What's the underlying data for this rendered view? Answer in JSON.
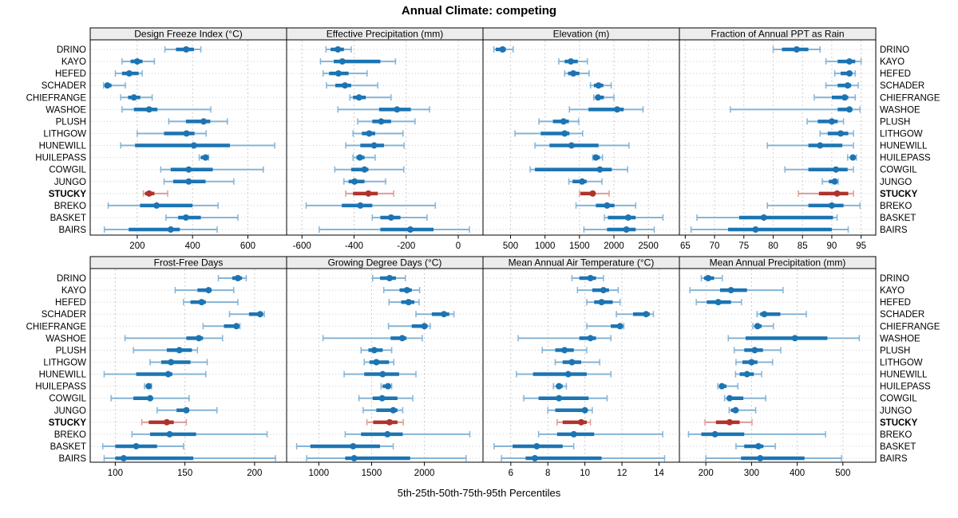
{
  "title": "Annual Climate: competing",
  "caption": "5th-25th-50th-75th-95th Percentiles",
  "highlight_site": "STUCKY",
  "colors": {
    "series": "#1c74b3",
    "series_light": "#85b4d6",
    "highlight": "#b0332a",
    "highlight_light": "#dc9d96",
    "grid": "#cccccc",
    "strip_bg": "#ececec",
    "border": "#000000",
    "text": "#000000"
  },
  "sites": [
    "DRINO",
    "KAYO",
    "HEFED",
    "SCHADER",
    "CHIEFRANGE",
    "WASHOE",
    "PLUSH",
    "LITHGOW",
    "HUNEWILL",
    "HUILEPASS",
    "COWGIL",
    "JUNGO",
    "STUCKY",
    "BREKO",
    "BASKET",
    "BAIRS"
  ],
  "chart_data": {
    "type": "dotplot-percentiles",
    "percentile_labels": [
      "5th",
      "25th",
      "50th",
      "75th",
      "95th"
    ],
    "legend_position": "none",
    "grid": "dashed",
    "panels": [
      {
        "title": "Design Freeze Index (°C)",
        "xlim": [
          30,
          740
        ],
        "ticks": [
          200,
          400,
          600
        ],
        "values": {
          "DRINO": [
            300,
            340,
            377,
            405,
            430
          ],
          "KAYO": [
            145,
            176,
            200,
            219,
            262
          ],
          "HEFED": [
            121,
            145,
            171,
            205,
            218
          ],
          "SCHADER": [
            78,
            84,
            92,
            107,
            157
          ],
          "CHIEFRANGE": [
            140,
            167,
            188,
            211,
            254
          ],
          "WASHOE": [
            145,
            188,
            243,
            273,
            466
          ],
          "PLUSH": [
            314,
            376,
            440,
            464,
            526
          ],
          "LITHGOW": [
            200,
            297,
            378,
            407,
            449
          ],
          "HUNEWILL": [
            140,
            192,
            405,
            535,
            697
          ],
          "HUILEPASS": [
            424,
            430,
            447,
            453,
            458
          ],
          "COWGIL": [
            285,
            321,
            386,
            473,
            656
          ],
          "JUNGO": [
            297,
            330,
            386,
            447,
            549
          ],
          "STUCKY": [
            222,
            228,
            243,
            262,
            310
          ],
          "BREKO": [
            95,
            210,
            270,
            400,
            492
          ],
          "BASKET": [
            304,
            348,
            376,
            430,
            564
          ],
          "BAIRS": [
            81,
            169,
            321,
            354,
            489
          ]
        }
      },
      {
        "title": "Effective Precipitation (mm)",
        "xlim": [
          -659,
          95
        ],
        "ticks": [
          -600,
          -400,
          -200,
          0
        ],
        "values": {
          "DRINO": [
            -508,
            -490,
            -462,
            -439,
            -411
          ],
          "KAYO": [
            -529,
            -478,
            -445,
            -299,
            -241
          ],
          "HEFED": [
            -519,
            -496,
            -460,
            -421,
            -350
          ],
          "SCHADER": [
            -506,
            -472,
            -435,
            -411,
            -309
          ],
          "CHIEFRANGE": [
            -416,
            -404,
            -381,
            -355,
            -258
          ],
          "WASHOE": [
            -462,
            -304,
            -235,
            -182,
            -110
          ],
          "PLUSH": [
            -386,
            -330,
            -296,
            -258,
            -166
          ],
          "LITHGOW": [
            -404,
            -370,
            -342,
            -319,
            -212
          ],
          "HUNEWILL": [
            -432,
            -376,
            -323,
            -285,
            -208
          ],
          "HUILEPASS": [
            -404,
            -391,
            -378,
            -360,
            -319
          ],
          "COWGIL": [
            -474,
            -411,
            -360,
            -345,
            -209
          ],
          "JUNGO": [
            -439,
            -421,
            -398,
            -360,
            -279
          ],
          "STUCKY": [
            -432,
            -404,
            -345,
            -309,
            -248
          ],
          "BREKO": [
            -584,
            -447,
            -376,
            -330,
            -88
          ],
          "BASKET": [
            -330,
            -299,
            -258,
            -222,
            -120
          ],
          "BAIRS": [
            -534,
            -299,
            -184,
            -95,
            43
          ]
        }
      },
      {
        "title": "Elevation (m)",
        "xlim": [
          100,
          2950
        ],
        "ticks": [
          500,
          1000,
          1500,
          2000,
          2500
        ],
        "values": {
          "DRINO": [
            258,
            285,
            385,
            431,
            538
          ],
          "KAYO": [
            1200,
            1285,
            1375,
            1475,
            1615
          ],
          "HEFED": [
            1285,
            1335,
            1410,
            1500,
            1640
          ],
          "SCHADER": [
            1660,
            1710,
            1777,
            1846,
            1960
          ],
          "CHIEFRANGE": [
            1708,
            1731,
            1770,
            1854,
            2000
          ],
          "WASHOE": [
            1354,
            1631,
            2046,
            2142,
            2423
          ],
          "PLUSH": [
            912,
            1115,
            1269,
            1346,
            1488
          ],
          "LITHGOW": [
            565,
            938,
            1285,
            1354,
            1546
          ],
          "HUNEWILL": [
            854,
            1065,
            1385,
            1777,
            2219
          ],
          "HUILEPASS": [
            1692,
            1708,
            1738,
            1796,
            1835
          ],
          "COWGIL": [
            785,
            854,
            1796,
            1969,
            2200
          ],
          "JUNGO": [
            1346,
            1400,
            1538,
            1604,
            1827
          ],
          "STUCKY": [
            1500,
            1515,
            1692,
            1731,
            1931
          ],
          "BREKO": [
            1450,
            1738,
            1900,
            2008,
            2315
          ],
          "BASKET": [
            1862,
            1912,
            2208,
            2315,
            2712
          ],
          "BAIRS": [
            1565,
            1900,
            2181,
            2315,
            2585
          ]
        }
      },
      {
        "title": "Fraction of Annual PPT as Rain",
        "xlim": [
          64,
          97.5
        ],
        "ticks": [
          65,
          70,
          75,
          80,
          85,
          90,
          95
        ],
        "values": {
          "DRINO": [
            80,
            81.5,
            84,
            86,
            88
          ],
          "KAYO": [
            89,
            91,
            93,
            94,
            95
          ],
          "HEFED": [
            90.5,
            91.5,
            93,
            93.5,
            94
          ],
          "SCHADER": [
            89,
            91,
            92.7,
            93.3,
            94.5
          ],
          "CHIEFRANGE": [
            87,
            90,
            92.2,
            92.8,
            94
          ],
          "WASHOE": [
            72.7,
            91,
            93,
            93.5,
            94.8
          ],
          "PLUSH": [
            85.8,
            87.6,
            90,
            91,
            92
          ],
          "LITHGOW": [
            88,
            89.3,
            91.5,
            92.8,
            93.7
          ],
          "HUNEWILL": [
            79,
            86,
            88,
            91.8,
            93.7
          ],
          "HUILEPASS": [
            92.7,
            93.2,
            93.6,
            94,
            94.2
          ],
          "COWGIL": [
            82,
            86,
            90.7,
            92.7,
            93.7
          ],
          "JUNGO": [
            88.4,
            89.5,
            90.5,
            90.9,
            91.1
          ],
          "STUCKY": [
            84.3,
            87.8,
            90.9,
            92.8,
            93.7
          ],
          "BREKO": [
            79,
            86,
            90,
            92,
            94.8
          ],
          "BASKET": [
            67,
            74.2,
            78.4,
            90.2,
            90.9
          ],
          "BAIRS": [
            66,
            72.3,
            77,
            90,
            92.8
          ]
        }
      },
      {
        "title": "Frost-Free Days",
        "xlim": [
          82,
          223
        ],
        "ticks": [
          100,
          150,
          200
        ],
        "values": {
          "DRINO": [
            174,
            184,
            188,
            191,
            194
          ],
          "KAYO": [
            143,
            159,
            167,
            169,
            185
          ],
          "HEFED": [
            149,
            154,
            162,
            165,
            188
          ],
          "SCHADER": [
            182,
            196,
            204,
            206,
            207
          ],
          "CHIEFRANGE": [
            163,
            178,
            187,
            189,
            189.5
          ],
          "WASHOE": [
            107,
            151,
            160,
            163,
            177
          ],
          "PLUSH": [
            113,
            137,
            146,
            155,
            159
          ],
          "LITHGOW": [
            125,
            133,
            140,
            154,
            166
          ],
          "HUNEWILL": [
            92,
            115,
            138,
            141,
            165
          ],
          "HUILEPASS": [
            121,
            122,
            124,
            125.5,
            126
          ],
          "COWGIL": [
            97,
            113,
            125,
            127,
            153
          ],
          "JUNGO": [
            130,
            144,
            151,
            153,
            173
          ],
          "STUCKY": [
            119,
            124,
            137,
            142,
            151
          ],
          "BREKO": [
            112,
            125,
            139,
            158,
            209
          ],
          "BASKET": [
            91,
            100,
            115,
            130,
            149
          ],
          "BAIRS": [
            92,
            100,
            106,
            156,
            215
          ]
        }
      },
      {
        "title": "Growing Degree Days (°C)",
        "xlim": [
          695,
          2555
        ],
        "ticks": [
          1000,
          1500,
          2000
        ],
        "values": {
          "DRINO": [
            1510,
            1580,
            1670,
            1730,
            1820
          ],
          "KAYO": [
            1615,
            1765,
            1835,
            1880,
            1955
          ],
          "HEFED": [
            1665,
            1780,
            1850,
            1905,
            1950
          ],
          "SCHADER": [
            1920,
            2070,
            2185,
            2235,
            2280
          ],
          "CHIEFRANGE": [
            1660,
            1880,
            2000,
            2030,
            2055
          ],
          "WASHOE": [
            1040,
            1680,
            1790,
            1830,
            1980
          ],
          "PLUSH": [
            1400,
            1470,
            1525,
            1605,
            1690
          ],
          "LITHGOW": [
            1430,
            1480,
            1545,
            1665,
            1710
          ],
          "HUNEWILL": [
            1240,
            1430,
            1605,
            1760,
            1920
          ],
          "HUILEPASS": [
            1590,
            1605,
            1655,
            1680,
            1690
          ],
          "COWGIL": [
            1380,
            1510,
            1600,
            1745,
            1890
          ],
          "JUNGO": [
            1420,
            1545,
            1705,
            1745,
            1795
          ],
          "STUCKY": [
            1455,
            1515,
            1670,
            1745,
            1800
          ],
          "BREKO": [
            1250,
            1400,
            1650,
            1795,
            2430
          ],
          "BASKET": [
            790,
            920,
            1325,
            1580,
            1705
          ],
          "BAIRS": [
            885,
            1250,
            1335,
            1865,
            2395
          ]
        }
      },
      {
        "title": "Mean Annual Air Temperature (°C)",
        "xlim": [
          4.5,
          15.1
        ],
        "ticks": [
          6,
          8,
          10,
          12,
          14
        ],
        "values": {
          "DRINO": [
            9.3,
            9.7,
            10.3,
            10.6,
            11.0
          ],
          "KAYO": [
            9.6,
            10.4,
            11.0,
            11.3,
            11.8
          ],
          "HEFED": [
            10.1,
            10.5,
            10.9,
            11.5,
            11.9
          ],
          "SCHADER": [
            11.7,
            12.6,
            13.3,
            13.5,
            13.7
          ],
          "CHIEFRANGE": [
            10.1,
            11.4,
            11.9,
            12.0,
            12.1
          ],
          "WASHOE": [
            6.4,
            9.7,
            10.3,
            10.6,
            11.4
          ],
          "PLUSH": [
            7.7,
            8.4,
            8.9,
            9.4,
            10.1
          ],
          "LITHGOW": [
            8.4,
            8.8,
            9.3,
            9.8,
            10.8
          ],
          "HUNEWILL": [
            6.3,
            7.2,
            9.1,
            10.1,
            11.4
          ],
          "HUILEPASS": [
            8.3,
            8.45,
            8.6,
            8.8,
            9.0
          ],
          "COWGIL": [
            6.7,
            7.5,
            8.6,
            10.2,
            11.2
          ],
          "JUNGO": [
            8.0,
            8.4,
            10.0,
            10.1,
            10.4
          ],
          "STUCKY": [
            8.5,
            8.8,
            9.8,
            10.1,
            10.3
          ],
          "BREKO": [
            7.5,
            8.5,
            9.4,
            10.5,
            14.2
          ],
          "BASKET": [
            5.1,
            6.1,
            7.4,
            8.8,
            9.4
          ],
          "BAIRS": [
            5.5,
            6.8,
            7.3,
            10.9,
            14.3
          ]
        }
      },
      {
        "title": "Mean Annual Precipitation (mm)",
        "xlim": [
          142,
          572
        ],
        "ticks": [
          200,
          300,
          400,
          500
        ],
        "values": {
          "DRINO": [
            190,
            196,
            205,
            218,
            236
          ],
          "KAYO": [
            165,
            231,
            255,
            290,
            369
          ],
          "HEFED": [
            179,
            202,
            227,
            255,
            278
          ],
          "SCHADER": [
            312,
            319,
            328,
            363,
            420
          ],
          "CHIEFRANGE": [
            303,
            307,
            313,
            322,
            348
          ],
          "WASHOE": [
            249,
            287,
            395,
            466,
            536
          ],
          "PLUSH": [
            262,
            284,
            307,
            325,
            364
          ],
          "LITHGOW": [
            266,
            280,
            300,
            313,
            346
          ],
          "HUNEWILL": [
            265,
            274,
            290,
            305,
            322
          ],
          "HUILEPASS": [
            226,
            229,
            235,
            245,
            270
          ],
          "COWGIL": [
            241,
            248,
            252,
            282,
            331
          ],
          "JUNGO": [
            251,
            255,
            265,
            271,
            309
          ],
          "STUCKY": [
            198,
            222,
            252,
            274,
            301
          ],
          "BREKO": [
            162,
            190,
            220,
            284,
            462
          ],
          "BASKET": [
            266,
            284,
            315,
            326,
            352
          ],
          "BAIRS": [
            200,
            277,
            319,
            416,
            497
          ]
        }
      }
    ]
  }
}
